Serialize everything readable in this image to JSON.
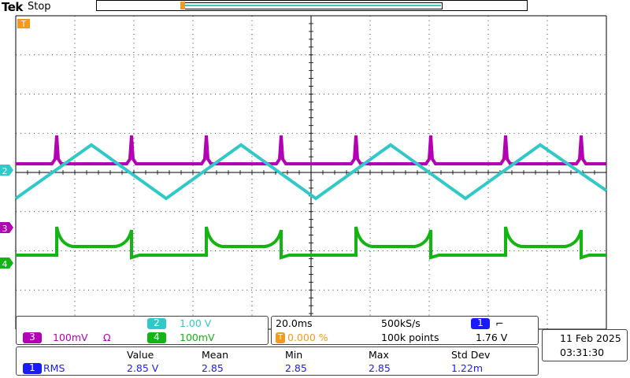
{
  "header": {
    "brand": "Tek",
    "run_state": "Stop"
  },
  "colors": {
    "ch1": "#1a1aff",
    "ch2": "#32c8c8",
    "ch3": "#b400b4",
    "ch4": "#14b414",
    "trigger": "#f39a1a",
    "graticule": "#000000"
  },
  "markers": {
    "trigger_top": "T",
    "ch2": "2",
    "ch3": "3",
    "ch4": "4"
  },
  "channel_panel": {
    "ch2_num": "2",
    "ch2_scale": "1.00 V",
    "ch3_num": "3",
    "ch3_scale": "100mV",
    "ch3_unit_symbol": "Ω",
    "ch4_num": "4",
    "ch4_scale": "100mV"
  },
  "timebase_panel": {
    "time_per_div": "20.0ms",
    "sample_rate": "500kS/s",
    "trigger_source_num": "1",
    "trigger_slope_symbol": "⌐",
    "trigger_position": "0.000 %",
    "record_length": "100k points",
    "trigger_level": "1.76 V"
  },
  "datetime": {
    "date": "11 Feb  2025",
    "time": "03:31:30"
  },
  "measurement": {
    "headers": [
      "Value",
      "Mean",
      "Min",
      "Max",
      "Std Dev"
    ],
    "channel_num": "1",
    "type": "RMS",
    "values": [
      "2.85 V",
      "2.85",
      "2.85",
      "2.85",
      "1.22m"
    ]
  }
}
